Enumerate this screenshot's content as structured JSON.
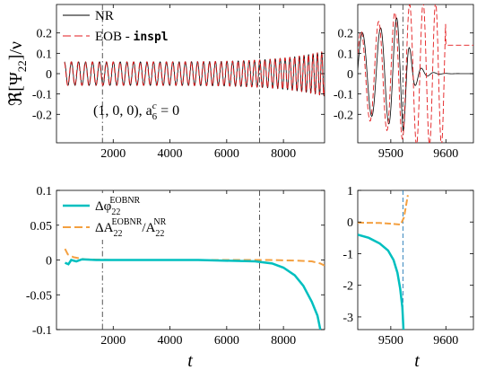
{
  "chart_data": [
    {
      "id": "tl",
      "type": "line",
      "xlim": [
        0,
        9450
      ],
      "ylim": [
        -0.34,
        0.34
      ],
      "xticks": [
        2000,
        4000,
        6000,
        8000
      ],
      "xtick_labels": [
        "2000",
        "4000",
        "6000",
        "8000"
      ],
      "yticks": [
        -0.2,
        -0.1,
        0,
        0.1,
        0.2
      ],
      "ytick_labels": [
        "-0.2",
        "-0.1",
        "0",
        "0.1",
        "0.2"
      ],
      "ylabel": "ℜ[Ψ22]/ν",
      "ylabel_main": "ℜ[Ψ",
      "ylabel_sub": "22",
      "ylabel_tail": "]/ν",
      "legend_pos": "top-left",
      "series": [
        {
          "name": "NR",
          "color": "#000000",
          "dash": "solid",
          "amp_start": 0.058,
          "amp_end": 0.11,
          "period_start": 250,
          "period_end": 150
        },
        {
          "name_prefix": "EOB - ",
          "name_mono": "inspl",
          "color": "#e31a1c",
          "dash": "dashed",
          "amp_start": 0.058,
          "amp_end": 0.11,
          "period_start": 250,
          "period_end": 150
        }
      ],
      "vlines": [
        1620,
        7160
      ],
      "annotation_main": "(1, 0, 0), a",
      "annotation_sup": "c",
      "annotation_sub": "6",
      "annotation_tail": " = 0"
    },
    {
      "id": "tr",
      "type": "line",
      "xlim": [
        9440,
        9650
      ],
      "ylim": [
        -0.34,
        0.34
      ],
      "xticks": [
        9500,
        9600
      ],
      "xtick_labels": [
        "9500",
        "9600"
      ],
      "yticks": [
        -0.2,
        -0.1,
        0,
        0.1,
        0.2
      ],
      "ytick_labels": [
        "-0.2",
        "-0.1",
        "0",
        "0.1",
        "0.2"
      ],
      "merger_nr": 9522,
      "nr_peak_amp": 0.3,
      "eob_peak_amp": 0.35,
      "eob_tail_level": 0.14,
      "vline": 9522
    },
    {
      "id": "bl",
      "type": "line",
      "xlim": [
        0,
        9450
      ],
      "ylim": [
        -0.1,
        0.1
      ],
      "xticks": [
        2000,
        4000,
        6000,
        8000
      ],
      "xtick_labels": [
        "2000",
        "4000",
        "6000",
        "8000"
      ],
      "yticks": [
        -0.1,
        -0.05,
        0,
        0.05,
        0.1
      ],
      "ytick_labels": [
        "-0.1",
        "-0.05",
        "0",
        "0.05",
        "0.1"
      ],
      "xlabel": "t",
      "legend_pos": "top-left",
      "series": [
        {
          "name_main": "Δφ",
          "name_sub": "22",
          "name_sup": "EOBNR",
          "color": "#00bfbf",
          "dash": "solid",
          "points": [
            [
              300,
              -0.004
            ],
            [
              420,
              -0.006
            ],
            [
              520,
              0.0
            ],
            [
              700,
              -0.002
            ],
            [
              900,
              0.001
            ],
            [
              1400,
              0.0
            ],
            [
              3000,
              0.0
            ],
            [
              5000,
              0.0
            ],
            [
              7000,
              -0.002
            ],
            [
              7600,
              -0.005
            ],
            [
              8000,
              -0.011
            ],
            [
              8400,
              -0.022
            ],
            [
              8700,
              -0.037
            ],
            [
              9000,
              -0.06
            ],
            [
              9200,
              -0.08
            ],
            [
              9300,
              -0.1
            ]
          ]
        },
        {
          "name_main": "ΔA",
          "name_sub": "22",
          "name_sup": "EOBNR",
          "name_den_main": "/A",
          "name_den_sub": "22",
          "name_den_sup": "NR",
          "color": "#f4a040",
          "dash": "dashed",
          "points": [
            [
              300,
              0.016
            ],
            [
              400,
              0.008
            ],
            [
              600,
              0.004
            ],
            [
              1000,
              0.001
            ],
            [
              2000,
              0.0
            ],
            [
              4000,
              0.0
            ],
            [
              6000,
              0.0
            ],
            [
              7500,
              0.0
            ],
            [
              8500,
              -0.001
            ],
            [
              9000,
              -0.002
            ],
            [
              9300,
              -0.005
            ],
            [
              9450,
              -0.008
            ]
          ]
        }
      ],
      "vlines": [
        1620,
        7160
      ]
    },
    {
      "id": "br",
      "type": "line",
      "xlim": [
        9440,
        9650
      ],
      "ylim": [
        -3.4,
        1.0
      ],
      "xticks": [
        9500,
        9600
      ],
      "xtick_labels": [
        "9500",
        "9600"
      ],
      "yticks": [
        -3,
        -2,
        -1,
        0,
        1
      ],
      "ytick_labels": [
        "-3",
        "-2",
        "-1",
        "0",
        "1"
      ],
      "xlabel": "t",
      "series": [
        {
          "color": "#00bfbf",
          "dash": "solid",
          "points": [
            [
              9440,
              -0.4
            ],
            [
              9460,
              -0.5
            ],
            [
              9480,
              -0.68
            ],
            [
              9495,
              -0.9
            ],
            [
              9505,
              -1.2
            ],
            [
              9512,
              -1.6
            ],
            [
              9517,
              -2.1
            ],
            [
              9521,
              -2.7
            ],
            [
              9523,
              -3.4
            ]
          ]
        },
        {
          "color": "#f4a040",
          "dash": "dashed",
          "points": [
            [
              9440,
              -0.02
            ],
            [
              9480,
              -0.03
            ],
            [
              9505,
              -0.06
            ],
            [
              9518,
              -0.08
            ],
            [
              9524,
              0.15
            ],
            [
              9528,
              0.55
            ],
            [
              9531,
              0.85
            ]
          ]
        }
      ],
      "vline": 9522
    }
  ]
}
